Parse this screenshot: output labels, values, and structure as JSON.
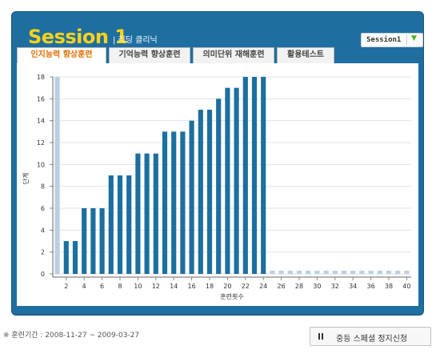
{
  "header": {
    "session_number": "Session 1",
    "subtitle": "| 리딩 클리닉",
    "session_select": {
      "value": "Session1",
      "arrow_icon": "triangle-down-icon"
    }
  },
  "tabs": [
    {
      "label": "인지능력 향상훈련",
      "active": true
    },
    {
      "label": "기억능력 향상훈련",
      "active": false
    },
    {
      "label": "의미단위 재해훈련",
      "active": false
    },
    {
      "label": "활용테스트",
      "active": false
    }
  ],
  "colors": {
    "panel": "#1f6ea0",
    "bar_done": "#1c6fa0",
    "bar_empty": "#b9cfe4",
    "title": "#ffd21a",
    "active_tab": "#e07000"
  },
  "chart_data": {
    "type": "bar",
    "categories": [
      "1",
      "2",
      "3",
      "4",
      "5",
      "6",
      "7",
      "8",
      "9",
      "10",
      "11",
      "12",
      "13",
      "14",
      "15",
      "16",
      "17",
      "18",
      "19",
      "20",
      "21",
      "22",
      "23",
      "24",
      "25",
      "26",
      "27",
      "28",
      "29",
      "30",
      "31",
      "32",
      "33",
      "34",
      "35",
      "36",
      "37",
      "38",
      "39",
      "40"
    ],
    "values": [
      18,
      3,
      3,
      6,
      6,
      6,
      9,
      9,
      9,
      11,
      11,
      11,
      13,
      13,
      13,
      14,
      15,
      15,
      16,
      17,
      17,
      18,
      18,
      18,
      0,
      0,
      0,
      0,
      0,
      0,
      0,
      0,
      0,
      0,
      0,
      0,
      0,
      0,
      0,
      0
    ],
    "xticks": [
      2,
      4,
      6,
      8,
      10,
      12,
      14,
      16,
      18,
      20,
      22,
      24,
      26,
      28,
      30,
      32,
      34,
      36,
      38,
      40
    ],
    "yticks": [
      0,
      2,
      4,
      6,
      8,
      10,
      12,
      14,
      16,
      18
    ],
    "ylim": [
      0,
      18
    ],
    "xlabel": "훈련횟수",
    "ylabel": "단계",
    "grid": true
  },
  "footer": {
    "period": "※ 훈련기간 : 2008-11-27 ~ 2009-03-27",
    "stop_button": {
      "label": "중등 스페셜 정지신청",
      "icon": "pause-icon"
    }
  }
}
